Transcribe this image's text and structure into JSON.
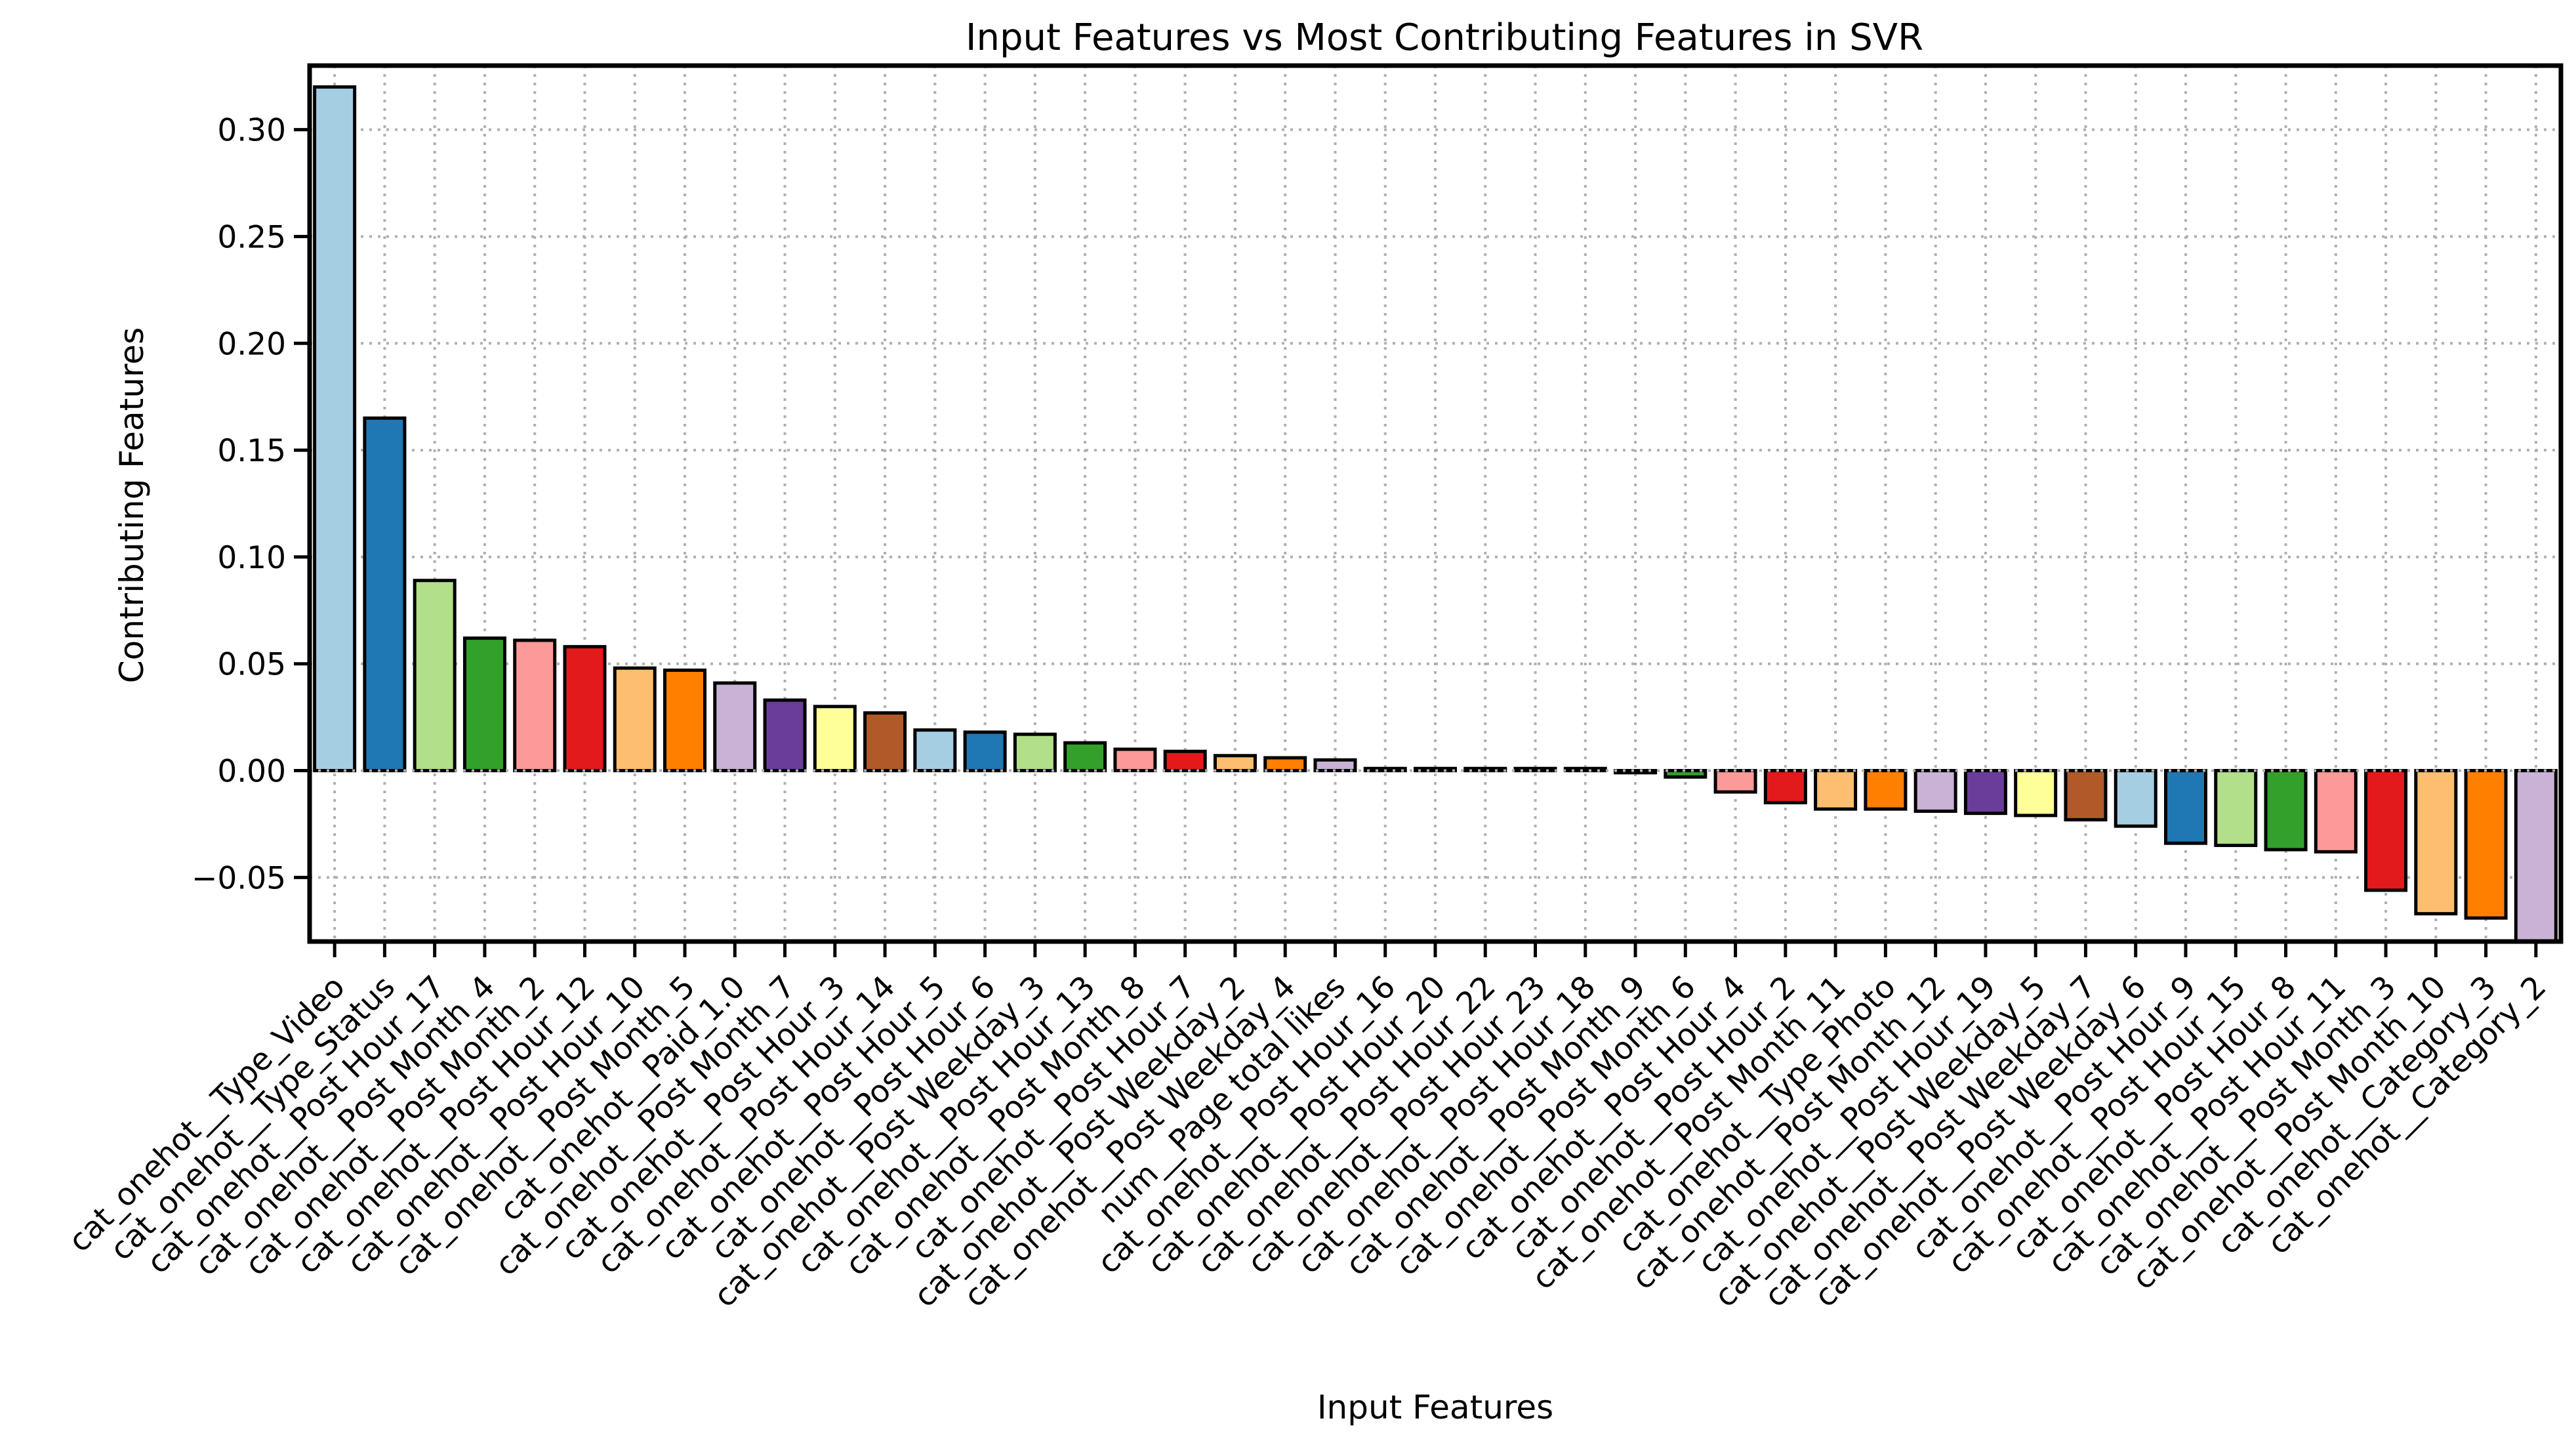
{
  "chart_data": {
    "type": "bar",
    "title": "Input Features vs Most Contributing Features in SVR",
    "xlabel": "Input Features",
    "ylabel": "Contributing Features",
    "ylim": [
      -0.08,
      0.33
    ],
    "yticks": [
      -0.05,
      0.0,
      0.05,
      0.1,
      0.15,
      0.2,
      0.25,
      0.3
    ],
    "ytick_labels": [
      "−0.05",
      "0.00",
      "0.05",
      "0.10",
      "0.15",
      "0.20",
      "0.25",
      "0.30"
    ],
    "grid": true,
    "categories": [
      "cat_onehot__Type_Video",
      "cat_onehot__Type_Status",
      "cat_onehot__Post Hour_17",
      "cat_onehot__Post Month_4",
      "cat_onehot__Post Month_2",
      "cat_onehot__Post Hour_12",
      "cat_onehot__Post Hour_10",
      "cat_onehot__Post Month_5",
      "cat_onehot__Paid_1.0",
      "cat_onehot__Post Month_7",
      "cat_onehot__Post Hour_3",
      "cat_onehot__Post Hour_14",
      "cat_onehot__Post Hour_5",
      "cat_onehot__Post Hour_6",
      "cat_onehot__Post Weekday_3",
      "cat_onehot__Post Hour_13",
      "cat_onehot__Post Month_8",
      "cat_onehot__Post Hour_7",
      "cat_onehot__Post Weekday_2",
      "cat_onehot__Post Weekday_4",
      "num__Page total likes",
      "cat_onehot__Post Hour_16",
      "cat_onehot__Post Hour_20",
      "cat_onehot__Post Hour_22",
      "cat_onehot__Post Hour_23",
      "cat_onehot__Post Hour_18",
      "cat_onehot__Post Month_9",
      "cat_onehot__Post Month_6",
      "cat_onehot__Post Hour_4",
      "cat_onehot__Post Hour_2",
      "cat_onehot__Post Month_11",
      "cat_onehot__Type_Photo",
      "cat_onehot__Post Month_12",
      "cat_onehot__Post Hour_19",
      "cat_onehot__Post Weekday_5",
      "cat_onehot__Post Weekday_7",
      "cat_onehot__Post Weekday_6",
      "cat_onehot__Post Hour_9",
      "cat_onehot__Post Hour_15",
      "cat_onehot__Post Hour_8",
      "cat_onehot__Post Hour_11",
      "cat_onehot__Post Month_3",
      "cat_onehot__Post Month_10",
      "cat_onehot__Category_3",
      "cat_onehot__Category_2"
    ],
    "values": [
      0.32,
      0.165,
      0.089,
      0.062,
      0.061,
      0.058,
      0.048,
      0.047,
      0.041,
      0.033,
      0.03,
      0.027,
      0.019,
      0.018,
      0.017,
      0.013,
      0.01,
      0.009,
      0.007,
      0.006,
      0.005,
      0.001,
      0.001,
      0.001,
      0.001,
      0.001,
      -0.001,
      -0.003,
      -0.01,
      -0.015,
      -0.018,
      -0.018,
      -0.019,
      -0.02,
      -0.021,
      -0.023,
      -0.026,
      -0.034,
      -0.035,
      -0.037,
      -0.038,
      -0.056,
      -0.067,
      -0.069,
      -0.08
    ],
    "palette": [
      "#a6cee3",
      "#1f78b4",
      "#b2df8a",
      "#33a02c",
      "#fb9a99",
      "#e31a1c",
      "#fdbf6f",
      "#ff7f00",
      "#cab2d6",
      "#6a3d9a",
      "#ffff99",
      "#b15928"
    ]
  }
}
